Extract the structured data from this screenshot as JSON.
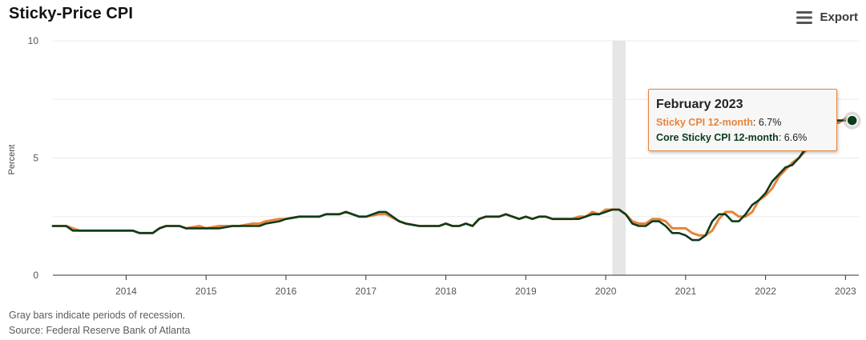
{
  "header": {
    "title": "Sticky-Price CPI",
    "export_label": "Export",
    "export_icon": "menu-icon"
  },
  "tooltip": {
    "title": "February 2023",
    "rows": [
      {
        "name": "Sticky CPI 12-month",
        "value": "6.7%"
      },
      {
        "name": "Core Sticky CPI 12-month",
        "value": "6.6%"
      }
    ]
  },
  "footer": {
    "note": "Gray bars indicate periods of recession.",
    "source": "Source: Federal Reserve Bank of Atlanta"
  },
  "chart_data": {
    "type": "line",
    "ylabel": "Percent",
    "ylim": [
      0,
      10
    ],
    "yticks": [
      0,
      5,
      10
    ],
    "xlim": [
      "2013-02",
      "2023-03"
    ],
    "xticks": [
      "2014",
      "2015",
      "2016",
      "2017",
      "2018",
      "2019",
      "2020",
      "2021",
      "2022",
      "2023"
    ],
    "recession": {
      "start": "2020-02",
      "end": "2020-04",
      "color": "#e6e6e6"
    },
    "grid": true,
    "series": [
      {
        "name": "Sticky CPI 12-month",
        "color": "#e8843a",
        "points": [
          [
            "2013-02",
            2.1
          ],
          [
            "2013-04",
            2.1
          ],
          [
            "2013-05",
            2.0
          ],
          [
            "2013-06",
            1.9
          ],
          [
            "2013-09",
            1.9
          ],
          [
            "2013-12",
            1.9
          ],
          [
            "2014-02",
            1.9
          ],
          [
            "2014-03",
            1.8
          ],
          [
            "2014-05",
            1.8
          ],
          [
            "2014-06",
            2.0
          ],
          [
            "2014-07",
            2.1
          ],
          [
            "2014-09",
            2.1
          ],
          [
            "2014-10",
            2.0
          ],
          [
            "2014-12",
            2.1
          ],
          [
            "2015-01",
            2.0
          ],
          [
            "2015-03",
            2.1
          ],
          [
            "2015-05",
            2.1
          ],
          [
            "2015-06",
            2.1
          ],
          [
            "2015-08",
            2.2
          ],
          [
            "2015-09",
            2.2
          ],
          [
            "2015-10",
            2.3
          ],
          [
            "2015-12",
            2.4
          ],
          [
            "2016-01",
            2.4
          ],
          [
            "2016-03",
            2.5
          ],
          [
            "2016-06",
            2.5
          ],
          [
            "2016-07",
            2.6
          ],
          [
            "2016-09",
            2.6
          ],
          [
            "2016-10",
            2.7
          ],
          [
            "2016-12",
            2.5
          ],
          [
            "2017-01",
            2.5
          ],
          [
            "2017-03",
            2.6
          ],
          [
            "2017-04",
            2.6
          ],
          [
            "2017-06",
            2.3
          ],
          [
            "2017-07",
            2.2
          ],
          [
            "2017-09",
            2.1
          ],
          [
            "2017-12",
            2.1
          ],
          [
            "2018-01",
            2.2
          ],
          [
            "2018-02",
            2.1
          ],
          [
            "2018-03",
            2.1
          ],
          [
            "2018-04",
            2.2
          ],
          [
            "2018-05",
            2.1
          ],
          [
            "2018-06",
            2.4
          ],
          [
            "2018-07",
            2.5
          ],
          [
            "2018-09",
            2.5
          ],
          [
            "2018-10",
            2.6
          ],
          [
            "2018-12",
            2.4
          ],
          [
            "2019-01",
            2.5
          ],
          [
            "2019-02",
            2.4
          ],
          [
            "2019-03",
            2.5
          ],
          [
            "2019-04",
            2.5
          ],
          [
            "2019-05",
            2.4
          ],
          [
            "2019-08",
            2.4
          ],
          [
            "2019-09",
            2.5
          ],
          [
            "2019-10",
            2.5
          ],
          [
            "2019-11",
            2.7
          ],
          [
            "2019-12",
            2.6
          ],
          [
            "2020-01",
            2.8
          ],
          [
            "2020-02",
            2.8
          ],
          [
            "2020-03",
            2.8
          ],
          [
            "2020-04",
            2.6
          ],
          [
            "2020-05",
            2.3
          ],
          [
            "2020-06",
            2.2
          ],
          [
            "2020-07",
            2.2
          ],
          [
            "2020-08",
            2.4
          ],
          [
            "2020-09",
            2.4
          ],
          [
            "2020-10",
            2.3
          ],
          [
            "2020-11",
            2.0
          ],
          [
            "2020-12",
            2.0
          ],
          [
            "2021-01",
            2.0
          ],
          [
            "2021-02",
            1.8
          ],
          [
            "2021-03",
            1.7
          ],
          [
            "2021-04",
            1.7
          ],
          [
            "2021-05",
            1.9
          ],
          [
            "2021-06",
            2.4
          ],
          [
            "2021-07",
            2.7
          ],
          [
            "2021-08",
            2.7
          ],
          [
            "2021-09",
            2.5
          ],
          [
            "2021-10",
            2.5
          ],
          [
            "2021-11",
            2.7
          ],
          [
            "2021-12",
            3.2
          ],
          [
            "2022-01",
            3.4
          ],
          [
            "2022-02",
            3.7
          ],
          [
            "2022-03",
            4.2
          ],
          [
            "2022-04",
            4.5
          ],
          [
            "2022-05",
            4.8
          ],
          [
            "2022-06",
            5.0
          ],
          [
            "2022-07",
            5.3
          ],
          [
            "2022-08",
            5.6
          ],
          [
            "2022-09",
            6.0
          ],
          [
            "2022-10",
            6.3
          ],
          [
            "2022-11",
            6.5
          ],
          [
            "2022-12",
            6.5
          ],
          [
            "2023-01",
            6.7
          ],
          [
            "2023-02",
            6.7
          ]
        ]
      },
      {
        "name": "Core Sticky CPI 12-month",
        "color": "#0d3b1e",
        "points": [
          [
            "2013-02",
            2.1
          ],
          [
            "2013-04",
            2.1
          ],
          [
            "2013-05",
            1.9
          ],
          [
            "2013-06",
            1.9
          ],
          [
            "2013-09",
            1.9
          ],
          [
            "2013-12",
            1.9
          ],
          [
            "2014-02",
            1.9
          ],
          [
            "2014-03",
            1.8
          ],
          [
            "2014-05",
            1.8
          ],
          [
            "2014-06",
            2.0
          ],
          [
            "2014-07",
            2.1
          ],
          [
            "2014-09",
            2.1
          ],
          [
            "2014-10",
            2.0
          ],
          [
            "2014-12",
            2.0
          ],
          [
            "2015-01",
            2.0
          ],
          [
            "2015-03",
            2.0
          ],
          [
            "2015-05",
            2.1
          ],
          [
            "2015-06",
            2.1
          ],
          [
            "2015-08",
            2.1
          ],
          [
            "2015-09",
            2.1
          ],
          [
            "2015-10",
            2.2
          ],
          [
            "2015-12",
            2.3
          ],
          [
            "2016-01",
            2.4
          ],
          [
            "2016-03",
            2.5
          ],
          [
            "2016-06",
            2.5
          ],
          [
            "2016-07",
            2.6
          ],
          [
            "2016-09",
            2.6
          ],
          [
            "2016-10",
            2.7
          ],
          [
            "2016-12",
            2.5
          ],
          [
            "2017-01",
            2.5
          ],
          [
            "2017-03",
            2.7
          ],
          [
            "2017-04",
            2.7
          ],
          [
            "2017-06",
            2.3
          ],
          [
            "2017-07",
            2.2
          ],
          [
            "2017-09",
            2.1
          ],
          [
            "2017-12",
            2.1
          ],
          [
            "2018-01",
            2.2
          ],
          [
            "2018-02",
            2.1
          ],
          [
            "2018-03",
            2.1
          ],
          [
            "2018-04",
            2.2
          ],
          [
            "2018-05",
            2.1
          ],
          [
            "2018-06",
            2.4
          ],
          [
            "2018-07",
            2.5
          ],
          [
            "2018-09",
            2.5
          ],
          [
            "2018-10",
            2.6
          ],
          [
            "2018-12",
            2.4
          ],
          [
            "2019-01",
            2.5
          ],
          [
            "2019-02",
            2.4
          ],
          [
            "2019-03",
            2.5
          ],
          [
            "2019-04",
            2.5
          ],
          [
            "2019-05",
            2.4
          ],
          [
            "2019-08",
            2.4
          ],
          [
            "2019-09",
            2.4
          ],
          [
            "2019-10",
            2.5
          ],
          [
            "2019-11",
            2.6
          ],
          [
            "2019-12",
            2.6
          ],
          [
            "2020-01",
            2.7
          ],
          [
            "2020-02",
            2.8
          ],
          [
            "2020-03",
            2.8
          ],
          [
            "2020-04",
            2.6
          ],
          [
            "2020-05",
            2.2
          ],
          [
            "2020-06",
            2.1
          ],
          [
            "2020-07",
            2.1
          ],
          [
            "2020-08",
            2.3
          ],
          [
            "2020-09",
            2.3
          ],
          [
            "2020-10",
            2.1
          ],
          [
            "2020-11",
            1.8
          ],
          [
            "2020-12",
            1.8
          ],
          [
            "2021-01",
            1.7
          ],
          [
            "2021-02",
            1.5
          ],
          [
            "2021-03",
            1.5
          ],
          [
            "2021-04",
            1.7
          ],
          [
            "2021-05",
            2.3
          ],
          [
            "2021-06",
            2.6
          ],
          [
            "2021-07",
            2.6
          ],
          [
            "2021-08",
            2.3
          ],
          [
            "2021-09",
            2.3
          ],
          [
            "2021-10",
            2.6
          ],
          [
            "2021-11",
            3.0
          ],
          [
            "2021-12",
            3.2
          ],
          [
            "2022-01",
            3.5
          ],
          [
            "2022-02",
            4.0
          ],
          [
            "2022-03",
            4.3
          ],
          [
            "2022-04",
            4.6
          ],
          [
            "2022-05",
            4.7
          ],
          [
            "2022-06",
            5.0
          ],
          [
            "2022-07",
            5.4
          ],
          [
            "2022-08",
            5.8
          ],
          [
            "2022-09",
            6.1
          ],
          [
            "2022-10",
            6.4
          ],
          [
            "2022-11",
            6.6
          ],
          [
            "2022-12",
            6.6
          ],
          [
            "2023-01",
            6.6
          ],
          [
            "2023-02",
            6.6
          ]
        ]
      }
    ],
    "highlight": {
      "date": "2023-02",
      "series_index": 1
    }
  }
}
